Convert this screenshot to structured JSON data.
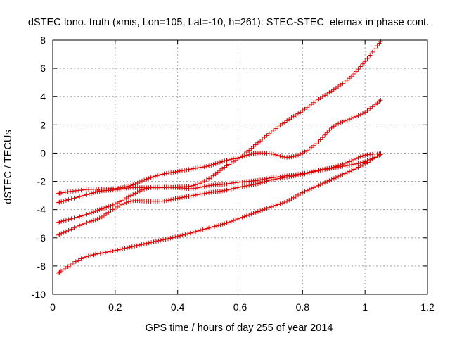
{
  "chart_data": {
    "type": "scatter",
    "title": "dSTEC Iono. truth (xmis, Lon=105, Lat=-10, h=261): STEC-STEC_elemax in phase cont.",
    "xlabel": "GPS time / hours of day 255 of year 2014",
    "ylabel": "dSTEC  / TECUs",
    "xlim": [
      0,
      1.2
    ],
    "ylim": [
      -10,
      8
    ],
    "xticks": [
      0,
      0.2,
      0.4,
      0.6,
      0.8,
      1,
      1.2
    ],
    "yticks": [
      -10,
      -8,
      -6,
      -4,
      -2,
      0,
      2,
      4,
      6,
      8
    ],
    "xtick_labels": [
      "0",
      "0.2",
      "0.4",
      "0.6",
      "0.8",
      "1",
      "1.2"
    ],
    "ytick_labels": [
      "-10",
      "-8",
      "-6",
      "-4",
      "-2",
      "0",
      "2",
      "4",
      "6",
      "8"
    ],
    "grid": true,
    "marker": "plus",
    "marker_color": "#dd0000",
    "series": [
      {
        "points": [
          [
            0.017,
            -2.85
          ],
          [
            0.1,
            -2.6
          ],
          [
            0.2,
            -2.5
          ],
          [
            0.25,
            -2.3
          ],
          [
            0.3,
            -1.85
          ],
          [
            0.35,
            -1.5
          ],
          [
            0.4,
            -1.3
          ],
          [
            0.45,
            -1.1
          ],
          [
            0.5,
            -0.9
          ],
          [
            0.55,
            -0.55
          ],
          [
            0.6,
            -0.3
          ],
          [
            0.65,
            0.0
          ],
          [
            0.7,
            -0.05
          ],
          [
            0.75,
            -0.3
          ],
          [
            0.8,
            0.0
          ],
          [
            0.85,
            0.8
          ],
          [
            0.9,
            1.9
          ],
          [
            0.95,
            2.4
          ],
          [
            1.0,
            2.9
          ],
          [
            1.05,
            3.75
          ]
        ]
      },
      {
        "points": [
          [
            0.017,
            -3.5
          ],
          [
            0.1,
            -3.0
          ],
          [
            0.15,
            -2.7
          ],
          [
            0.2,
            -2.6
          ],
          [
            0.25,
            -2.45
          ],
          [
            0.3,
            -2.45
          ],
          [
            0.35,
            -2.45
          ],
          [
            0.4,
            -2.4
          ],
          [
            0.45,
            -2.3
          ],
          [
            0.5,
            -1.8
          ],
          [
            0.55,
            -1.0
          ],
          [
            0.6,
            -0.3
          ],
          [
            0.65,
            0.6
          ],
          [
            0.7,
            1.5
          ],
          [
            0.75,
            2.3
          ],
          [
            0.8,
            3.0
          ],
          [
            0.85,
            3.8
          ],
          [
            0.9,
            4.5
          ],
          [
            0.95,
            5.3
          ],
          [
            1.0,
            6.5
          ],
          [
            1.05,
            7.9
          ]
        ]
      },
      {
        "points": [
          [
            0.017,
            -4.9
          ],
          [
            0.1,
            -4.4
          ],
          [
            0.15,
            -4.0
          ],
          [
            0.2,
            -3.6
          ],
          [
            0.25,
            -3.0
          ],
          [
            0.3,
            -2.5
          ],
          [
            0.35,
            -2.4
          ],
          [
            0.4,
            -2.45
          ],
          [
            0.45,
            -2.5
          ],
          [
            0.5,
            -2.3
          ],
          [
            0.55,
            -2.2
          ],
          [
            0.6,
            -2.05
          ],
          [
            0.65,
            -1.95
          ],
          [
            0.7,
            -1.75
          ],
          [
            0.75,
            -1.6
          ],
          [
            0.8,
            -1.45
          ],
          [
            0.85,
            -1.2
          ],
          [
            0.9,
            -1.0
          ],
          [
            0.95,
            -0.6
          ],
          [
            1.0,
            -0.15
          ],
          [
            1.05,
            -0.05
          ]
        ]
      },
      {
        "points": [
          [
            0.017,
            -5.8
          ],
          [
            0.1,
            -5.0
          ],
          [
            0.15,
            -4.6
          ],
          [
            0.2,
            -3.9
          ],
          [
            0.25,
            -3.4
          ],
          [
            0.3,
            -3.4
          ],
          [
            0.35,
            -3.4
          ],
          [
            0.4,
            -3.2
          ],
          [
            0.45,
            -3.0
          ],
          [
            0.5,
            -2.8
          ],
          [
            0.55,
            -2.65
          ],
          [
            0.6,
            -2.4
          ],
          [
            0.65,
            -2.2
          ],
          [
            0.7,
            -1.9
          ],
          [
            0.75,
            -1.7
          ],
          [
            0.8,
            -1.5
          ],
          [
            0.85,
            -1.25
          ],
          [
            0.9,
            -1.05
          ],
          [
            0.95,
            -0.85
          ],
          [
            1.0,
            -0.6
          ],
          [
            1.05,
            -0.1
          ]
        ]
      },
      {
        "points": [
          [
            0.017,
            -8.5
          ],
          [
            0.1,
            -7.4
          ],
          [
            0.2,
            -6.9
          ],
          [
            0.3,
            -6.4
          ],
          [
            0.4,
            -5.9
          ],
          [
            0.5,
            -5.3
          ],
          [
            0.55,
            -5.0
          ],
          [
            0.6,
            -4.6
          ],
          [
            0.65,
            -4.2
          ],
          [
            0.7,
            -3.8
          ],
          [
            0.75,
            -3.4
          ],
          [
            0.8,
            -2.8
          ],
          [
            0.85,
            -2.3
          ],
          [
            0.9,
            -1.8
          ],
          [
            0.95,
            -1.3
          ],
          [
            1.0,
            -0.75
          ],
          [
            1.05,
            -0.05
          ]
        ]
      }
    ]
  }
}
